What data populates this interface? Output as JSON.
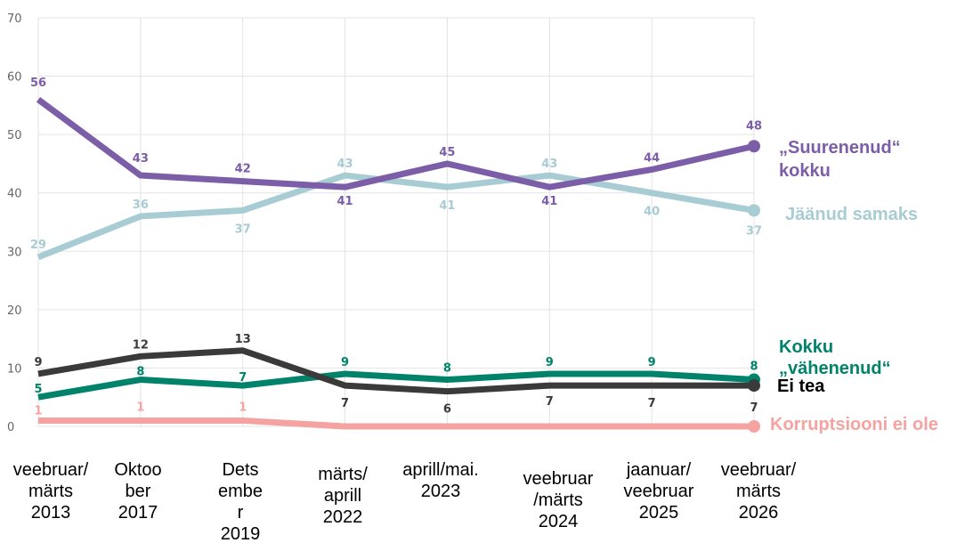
{
  "chart_data": {
    "type": "line",
    "categories": [
      "veebruar/\nmärts\n2013",
      "Oktoo\nber\n2017",
      "Dets\nembe\nr\n2019",
      "märts/\naprill\n2022",
      "aprill/mai.\n2023",
      "veebruar\n/märts\n2024",
      "jaanuar/\nveebruar\n2025",
      "veebruar/\nmärts\n2026"
    ],
    "ylim": [
      0,
      70
    ],
    "yticks": [
      0,
      10,
      20,
      30,
      40,
      50,
      60,
      70
    ],
    "grid": true,
    "series": [
      {
        "name": "„Suurenenud“\nkokku",
        "key": "suurenenud",
        "color": "#7b5ea7",
        "values": [
          56,
          43,
          42,
          41,
          45,
          41,
          44,
          48
        ],
        "labels": [
          "56",
          "43",
          "42",
          "41",
          "45",
          "41",
          "44",
          "48"
        ]
      },
      {
        "name": "Jäänud samaks",
        "key": "samaks",
        "color": "#a8ccd3",
        "values": [
          29,
          36,
          37,
          43,
          41,
          43,
          40,
          37
        ],
        "labels": [
          "29",
          "36",
          "37",
          "43",
          "41",
          "43",
          "40",
          "37"
        ]
      },
      {
        "name": "Kokku\n„vähenenud“",
        "key": "vahenenud",
        "color": "#00836a",
        "values": [
          5,
          8,
          7,
          9,
          8,
          9,
          9,
          8
        ],
        "labels": [
          "5",
          "8",
          "7",
          "9",
          "8",
          "9",
          "9",
          "8"
        ]
      },
      {
        "name": "Ei tea",
        "key": "eitea",
        "color": "#3a3a3a",
        "values": [
          9,
          12,
          13,
          7,
          6,
          7,
          7,
          7
        ],
        "labels": [
          "9",
          "12",
          "13",
          "7",
          "6",
          "7",
          "7",
          "7"
        ]
      },
      {
        "name": "Korruptsiooni ei ole",
        "key": "korruptsioon",
        "color": "#f4a3a0",
        "values": [
          1,
          1,
          1,
          0,
          0,
          0,
          0,
          0
        ],
        "labels": [
          "1",
          "1",
          "1",
          "",
          "",
          "",
          "",
          ""
        ]
      }
    ]
  }
}
